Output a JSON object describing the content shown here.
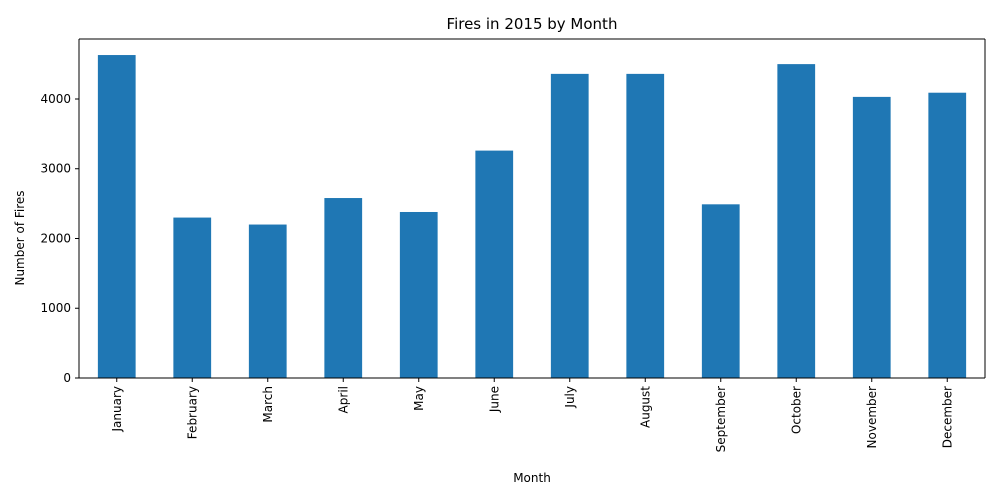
{
  "chart_data": {
    "type": "bar",
    "title": "Fires in 2015 by Month",
    "xlabel": "Month",
    "ylabel": "Number of Fires",
    "categories": [
      "January",
      "February",
      "March",
      "April",
      "May",
      "June",
      "July",
      "August",
      "September",
      "October",
      "November",
      "December"
    ],
    "values": [
      4630,
      2300,
      2200,
      2580,
      2380,
      3260,
      4360,
      4360,
      2490,
      4500,
      4030,
      4090
    ],
    "ylim": [
      0,
      4860
    ],
    "yticks": [
      0,
      1000,
      2000,
      3000,
      4000
    ],
    "grid": false,
    "legend": "none",
    "bar_color": "#1f77b4"
  }
}
